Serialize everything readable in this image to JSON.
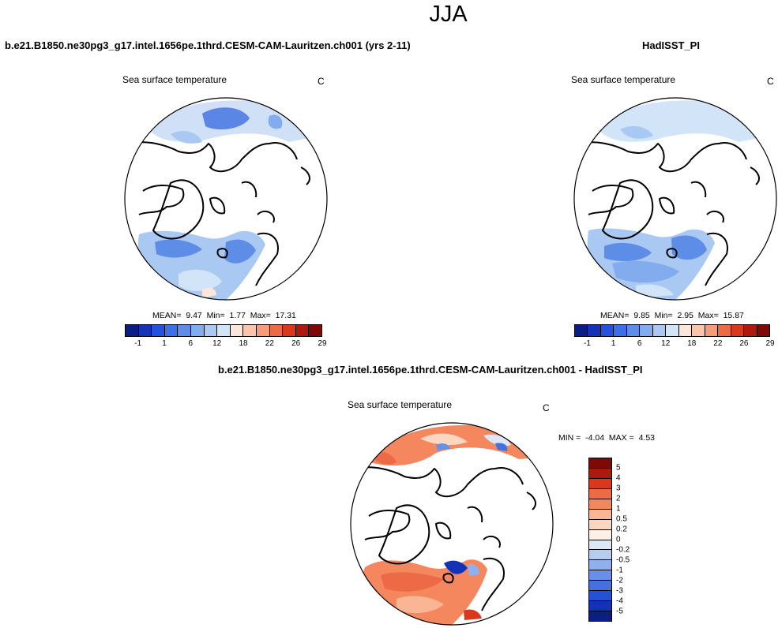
{
  "title": "JJA",
  "panels": [
    {
      "case_name": "b.e21.B1850.ne30pg3_g17.intel.1656pe.1thrd.CESM-CAM-Lauritzen.ch001 (yrs 2-11)",
      "variable": "Sea surface temperature",
      "units": "C",
      "stats": {
        "mean_label": "MEAN=",
        "mean": "9.47",
        "min_label": "Min=",
        "min": "1.77",
        "max_label": "Max=",
        "max": "17.31"
      },
      "colorbar": {
        "colors": [
          "#0a1e84",
          "#1533b7",
          "#2451dd",
          "#3d6fe9",
          "#5e8de8",
          "#83acee",
          "#a9c9f3",
          "#d2e4f8",
          "#fbe7d9",
          "#f9c6ab",
          "#f59d7a",
          "#ec6a45",
          "#d9381d",
          "#b0180e",
          "#7d0a07"
        ],
        "tick_labels": [
          "-1",
          "1",
          "6",
          "12",
          "18",
          "22",
          "26",
          "29"
        ]
      }
    },
    {
      "case_name": "HadISST_PI",
      "variable": "Sea surface temperature",
      "units": "C",
      "stats": {
        "mean_label": "MEAN=",
        "mean": "9.85",
        "min_label": "Min=",
        "min": "2.95",
        "max_label": "Max=",
        "max": "15.87"
      },
      "colorbar": {
        "colors": [
          "#0a1e84",
          "#1533b7",
          "#2451dd",
          "#3d6fe9",
          "#5e8de8",
          "#83acee",
          "#a9c9f3",
          "#d2e4f8",
          "#fbe7d9",
          "#f9c6ab",
          "#f59d7a",
          "#ec6a45",
          "#d9381d",
          "#b0180e",
          "#7d0a07"
        ],
        "tick_labels": [
          "-1",
          "1",
          "6",
          "12",
          "18",
          "22",
          "26",
          "29"
        ]
      }
    },
    {
      "case_name": "b.e21.B1850.ne30pg3_g17.intel.1656pe.1thrd.CESM-CAM-Lauritzen.ch001 - HadISST_PI",
      "variable": "Sea surface temperature",
      "units": "C",
      "stats": {
        "min_label": "MIN =",
        "min": "-4.04",
        "max_label": "MAX =",
        "max": "4.53"
      },
      "colorbar": {
        "colors": [
          "#7d0a07",
          "#b0180e",
          "#d9381d",
          "#ec6a45",
          "#f5875f",
          "#f9b594",
          "#fbd7c2",
          "#fdf0e6",
          "#dbe7f7",
          "#b5cdf1",
          "#8fb0ec",
          "#6a8fe6",
          "#4470e0",
          "#2550d8",
          "#1233b8",
          "#0a1e84"
        ],
        "tick_labels": [
          "5",
          "4",
          "3",
          "2",
          "1",
          "0.5",
          "0.2",
          "0",
          "-0.2",
          "-0.5",
          "-1",
          "-2",
          "-3",
          "-4",
          "-5"
        ]
      }
    }
  ]
}
